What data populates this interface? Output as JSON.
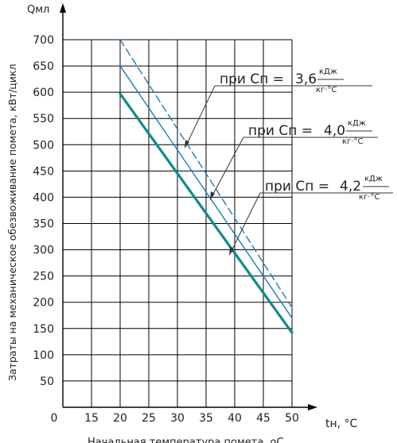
{
  "chart_data": {
    "type": "line",
    "ylabel_short": "Qмл",
    "ylabel": "Затраты на механическое обезвоживание помета, кВт/цикл",
    "xlabel_short": "tн, °С",
    "xlabel": "Начальная температура помета, оС",
    "x_ticks": [
      "0",
      "15",
      "20",
      "25",
      "30",
      "35",
      "40",
      "45",
      "50"
    ],
    "y_ticks": [
      "50",
      "100",
      "150",
      "200",
      "250",
      "300",
      "350",
      "400",
      "450",
      "500",
      "550",
      "600",
      "650",
      "700"
    ],
    "xlim": [
      10,
      50
    ],
    "ylim": [
      0,
      700
    ],
    "grid": true,
    "series": [
      {
        "name": "при Сп = 3,6 кДж/кг·°С",
        "style": "dashed",
        "color": "#1a7abf",
        "x": [
          20,
          50
        ],
        "y": [
          700,
          190
        ]
      },
      {
        "name": "при Сп = 4,0 кДж/кг·°С",
        "style": "solid",
        "color": "#1a7abf",
        "x": [
          20,
          50
        ],
        "y": [
          650,
          170
        ]
      },
      {
        "name": "при Сп = 4,2 кДж/кг·°С",
        "style": "bold",
        "color": "#138a8a",
        "x": [
          20,
          50
        ],
        "y": [
          597,
          142
        ]
      }
    ],
    "annotations": [
      {
        "prefix": "при Сп = ",
        "value": "3,6",
        "unit_top": "кДж",
        "unit_bottom": "кг·°С"
      },
      {
        "prefix": "при Сп = ",
        "value": "4,0",
        "unit_top": "кДж",
        "unit_bottom": "кг·°С"
      },
      {
        "prefix": "при Сп = ",
        "value": "4,2",
        "unit_top": "кДж",
        "unit_bottom": "кг·°С"
      }
    ]
  }
}
